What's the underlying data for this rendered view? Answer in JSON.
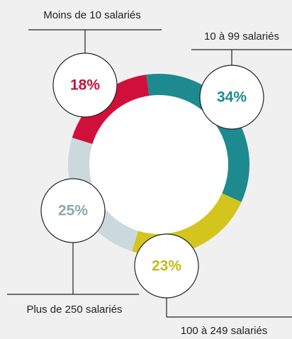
{
  "chart_data": {
    "type": "donut",
    "categories": [
      "10 à 99 salariés",
      "100 à 249 salariés",
      "Plus de 250 salariés",
      "Moins de 10 salariés"
    ],
    "values": [
      34,
      23,
      25,
      18
    ],
    "value_labels": [
      "34%",
      "23%",
      "25%",
      "18%"
    ],
    "colors": [
      "#1d8a8f",
      "#d3c51d",
      "#cbd9dd",
      "#d0103a"
    ],
    "label_colors": [
      "#1d8a8f",
      "#c9b91a",
      "#8ea8b1",
      "#c8103a"
    ]
  }
}
